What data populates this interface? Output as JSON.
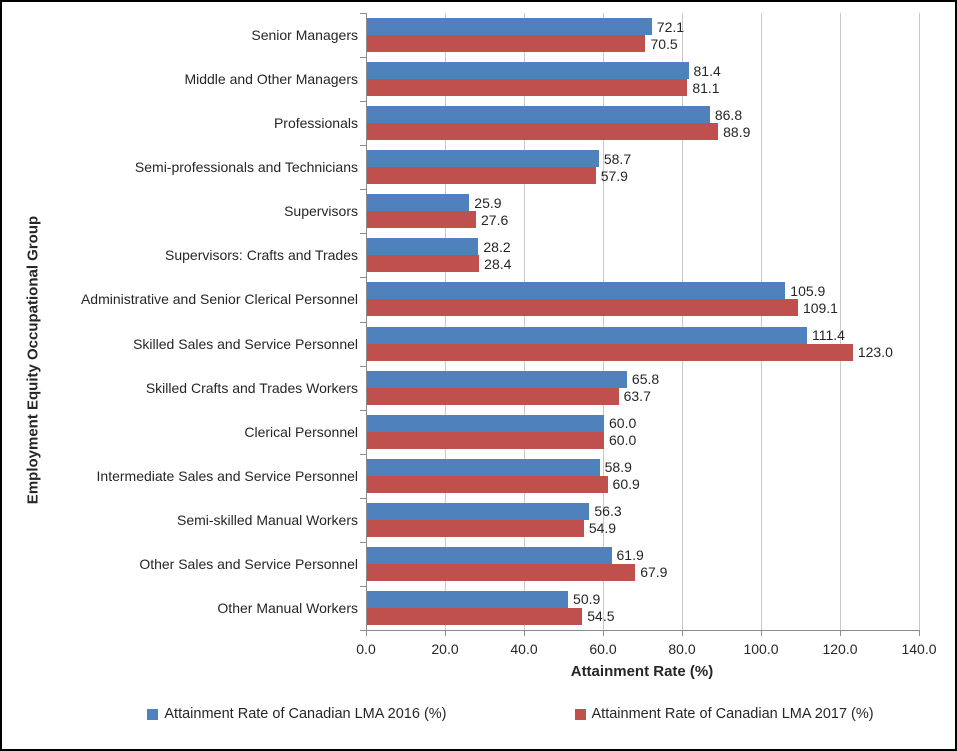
{
  "window": {
    "background_color": "#ffffff",
    "border_color": "#000000"
  },
  "chart_data": {
    "type": "bar",
    "orientation": "horizontal",
    "title": "",
    "xlabel": "Attainment Rate (%)",
    "ylabel": "Employment Equity Occupational Group",
    "xlim": [
      0,
      140
    ],
    "x_tick_values": [
      0,
      20,
      40,
      60,
      80,
      100,
      120,
      140
    ],
    "x_tick_labels": [
      "0.0",
      "20.0",
      "40.0",
      "60.0",
      "80.0",
      "100.0",
      "120.0",
      "140.0"
    ],
    "grid": true,
    "legend_position": "bottom",
    "value_label_decimals": 1,
    "gridline_color": "#c9c9c9",
    "axis_color": "#8c8c8c",
    "text_color": "#262626",
    "categories": [
      "Senior Managers",
      "Middle and Other Managers",
      "Professionals",
      "Semi-professionals and Technicians",
      "Supervisors",
      "Supervisors: Crafts and Trades",
      "Administrative and Senior Clerical Personnel",
      "Skilled Sales and Service Personnel",
      "Skilled Crafts and Trades Workers",
      "Clerical Personnel",
      "Intermediate Sales and Service Personnel",
      "Semi-skilled Manual Workers",
      "Other Sales and Service Personnel",
      "Other Manual Workers"
    ],
    "series": [
      {
        "name": "Attainment Rate of Canadian LMA 2016 (%)",
        "color": "#4F81BD",
        "values": [
          72.1,
          81.4,
          86.8,
          58.7,
          25.9,
          28.2,
          105.9,
          111.4,
          65.8,
          60.0,
          58.9,
          56.3,
          61.9,
          50.9
        ]
      },
      {
        "name": "Attainment Rate of Canadian LMA 2017 (%)",
        "color": "#C0504D",
        "values": [
          70.5,
          81.1,
          88.9,
          57.9,
          27.6,
          28.4,
          109.1,
          123.0,
          63.7,
          60.0,
          60.9,
          54.9,
          67.9,
          54.5
        ]
      }
    ]
  }
}
